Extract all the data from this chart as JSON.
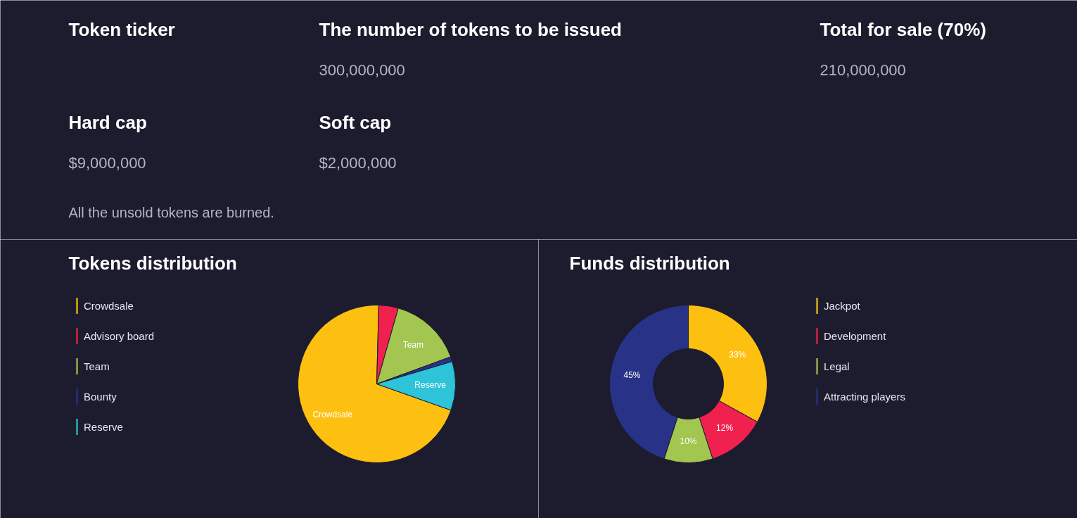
{
  "chart_data": [
    {
      "type": "other",
      "annotations": [
        "Token ticker",
        "The number of tokens to be issued",
        "300,000,000",
        "Total for sale (70%)",
        "210,000,000",
        "Hard cap",
        "$9,000,000",
        "Soft cap",
        "$2,000,000",
        "All the unsold tokens are burned."
      ]
    },
    {
      "type": "pie",
      "title": "Tokens distribution",
      "categories": [
        "Crowdsale",
        "Advisory board",
        "Team",
        "Bounty",
        "Reserve"
      ],
      "values": [
        70,
        4,
        15,
        1,
        10
      ],
      "colors": [
        "#fdc010",
        "#f0214e",
        "#a2c64f",
        "#283286",
        "#2dc3d8"
      ],
      "value_labels": [
        "Crowdsale",
        null,
        "Team",
        null,
        "Reserve"
      ],
      "legend": "left"
    },
    {
      "type": "donut",
      "title": "Funds distribution",
      "categories": [
        "Jackpot",
        "Development",
        "Legal",
        "Attracting players"
      ],
      "values": [
        33,
        12,
        10,
        45
      ],
      "colors": [
        "#fdc010",
        "#f0214e",
        "#a2c64f",
        "#283286"
      ],
      "value_labels": [
        "33%",
        "12%",
        "10%",
        "45%"
      ],
      "legend": "right"
    }
  ]
}
